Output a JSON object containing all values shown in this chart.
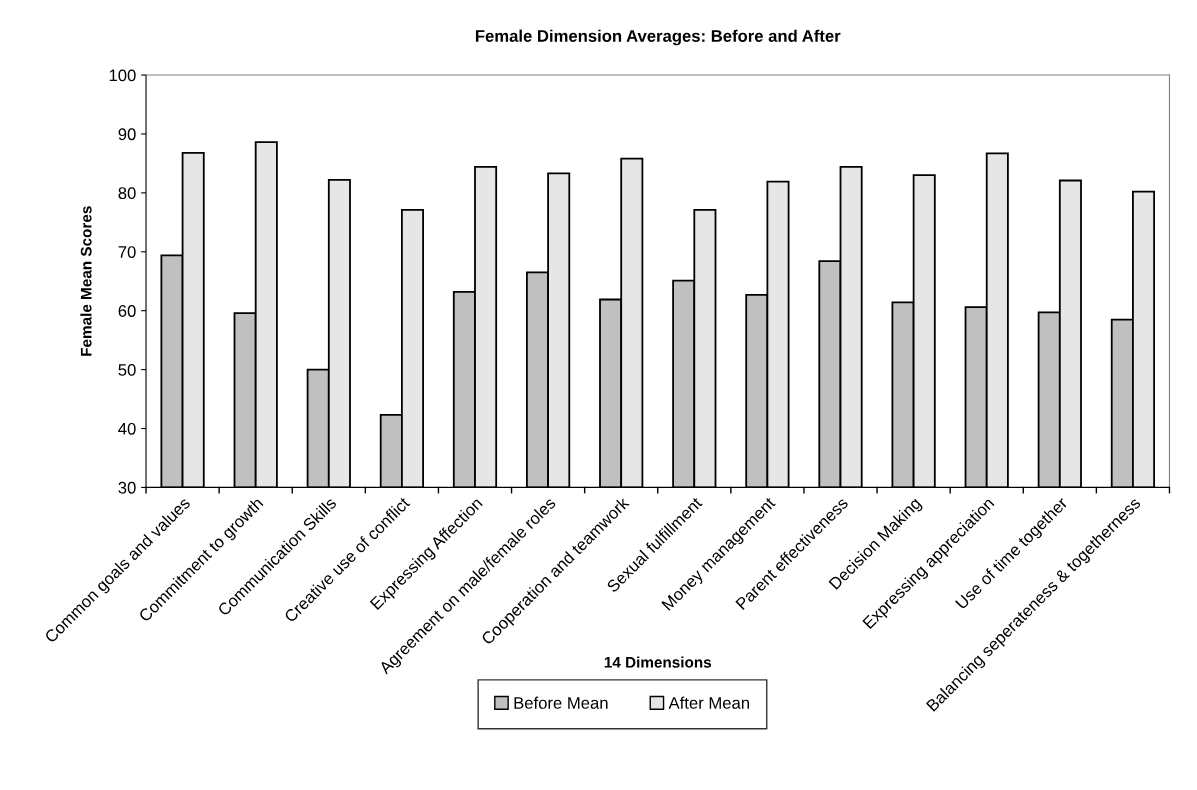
{
  "chart_data": {
    "type": "bar",
    "title": "Female Dimension Averages: Before and After",
    "xlabel": "14 Dimensions",
    "ylabel": "Female Mean Scores",
    "categories": [
      "Common goals and values",
      "Commitment to growth",
      "Communication Skills",
      "Creative use of conflict",
      "Expressing Affection",
      "Agreement on male/female roles",
      "Cooperation and teamwork",
      "Sexual fulfillment",
      "Money management",
      "Parent effectiveness",
      "Decision Making",
      "Expressing appreciation",
      "Use of time together",
      "Balancing seperateness & togetherness"
    ],
    "series": [
      {
        "name": "Before Mean",
        "color": "#c0c0c0",
        "values": [
          69.4,
          59.6,
          50.0,
          42.3,
          63.2,
          66.5,
          61.9,
          65.1,
          62.7,
          68.4,
          61.4,
          60.6,
          59.7,
          58.5
        ]
      },
      {
        "name": "After Mean",
        "color": "#e6e6e6",
        "values": [
          86.8,
          88.6,
          82.2,
          77.1,
          84.4,
          83.3,
          85.8,
          77.1,
          81.9,
          84.4,
          83.0,
          86.7,
          82.1,
          80.2
        ]
      }
    ],
    "ylim": [
      30,
      100
    ],
    "yticks": [
      30,
      40,
      50,
      60,
      70,
      80,
      90,
      100
    ],
    "grid": false,
    "legend": "bottom"
  }
}
